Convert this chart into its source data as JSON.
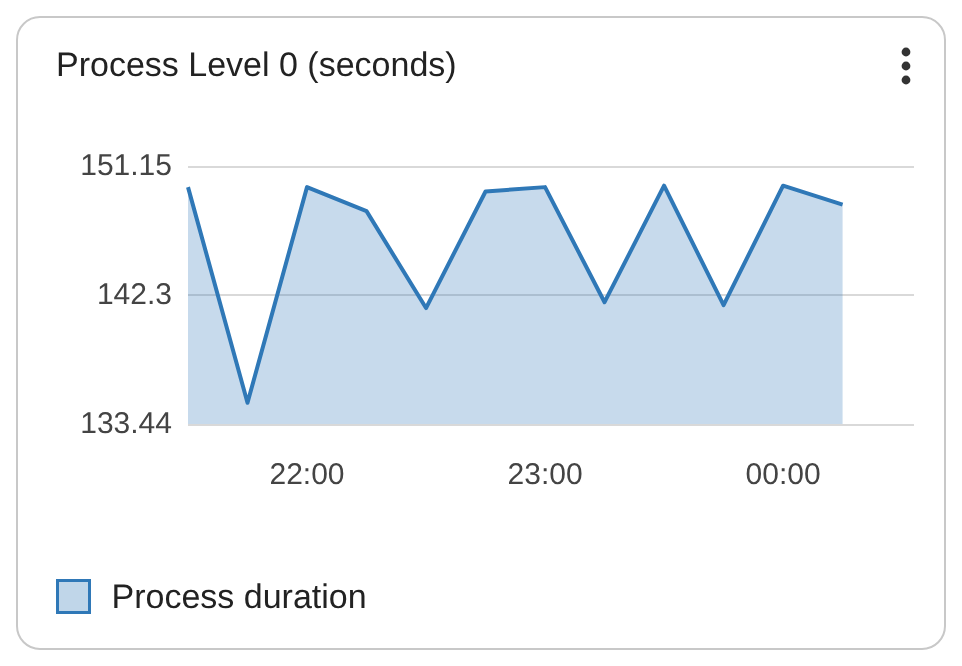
{
  "chart_data": {
    "type": "area",
    "title": "Process Level 0 (seconds)",
    "x": [
      21.5,
      21.75,
      22,
      22.25,
      22.5,
      22.75,
      23,
      23.25,
      23.5,
      23.75,
      24,
      24.25
    ],
    "series": [
      {
        "name": "Process duration",
        "color": "#2f78b7",
        "values": [
          149.7,
          134.9,
          149.7,
          148.05,
          141.4,
          149.4,
          149.7,
          141.8,
          149.8,
          141.6,
          149.8,
          148.5
        ]
      }
    ],
    "xlim": [
      21.5,
      24.55
    ],
    "xticks": [
      {
        "value": 22,
        "label": "22:00"
      },
      {
        "value": 23,
        "label": "23:00"
      },
      {
        "value": 24,
        "label": "00:00"
      }
    ],
    "ylim": [
      133.44,
      151.15
    ],
    "yticks": [
      133.44,
      142.3,
      151.15
    ],
    "grid": "y",
    "legend": "bottom left",
    "marker": "none",
    "line_style": "solid"
  }
}
